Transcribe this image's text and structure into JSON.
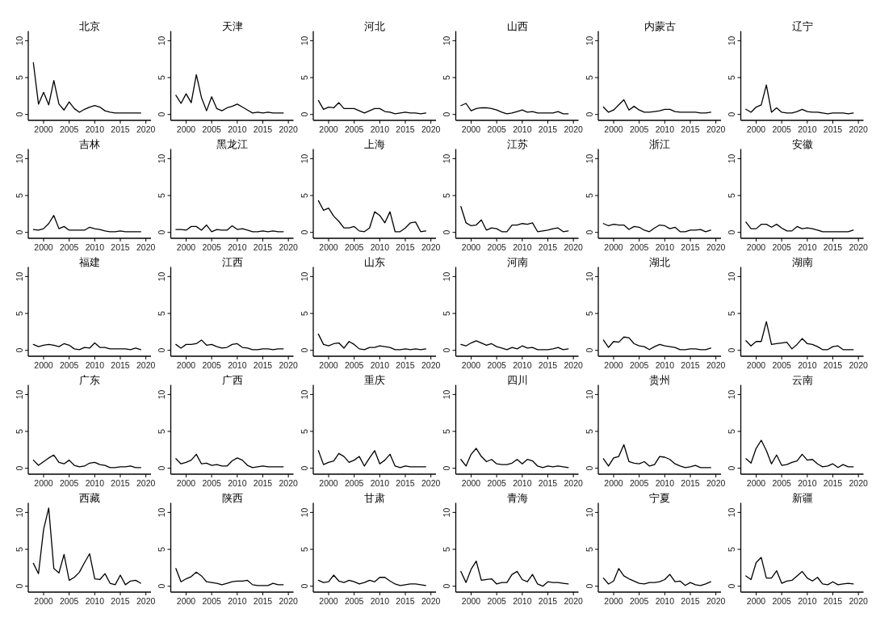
{
  "chart_data": [
    {
      "type": "line",
      "title": "北京",
      "x": [
        1998,
        1999,
        2000,
        2001,
        2002,
        2003,
        2004,
        2005,
        2006,
        2007,
        2008,
        2009,
        2010,
        2011,
        2012,
        2013,
        2014,
        2015,
        2016,
        2017,
        2018,
        2019
      ],
      "values": [
        7.0,
        1.4,
        3.0,
        1.3,
        4.6,
        1.4,
        0.6,
        1.7,
        0.8,
        0.3,
        0.7,
        1.0,
        1.2,
        1.0,
        0.5,
        0.3,
        0.2,
        0.2,
        0.2,
        0.2,
        0.2,
        0.2
      ],
      "color": "#000000",
      "xlim": [
        1997,
        2021
      ],
      "xticks": [
        2000,
        2005,
        2010,
        2015,
        2020
      ],
      "ylim": [
        -0.8,
        11.3
      ],
      "yticks": [
        0,
        5,
        10
      ]
    },
    {
      "type": "line",
      "title": "天津",
      "x": [
        1998,
        1999,
        2000,
        2001,
        2002,
        2003,
        2004,
        2005,
        2006,
        2007,
        2008,
        2009,
        2010,
        2011,
        2012,
        2013,
        2014,
        2015,
        2016,
        2017,
        2018,
        2019
      ],
      "values": [
        2.6,
        1.5,
        2.8,
        1.6,
        5.4,
        2.3,
        0.5,
        2.4,
        0.8,
        0.5,
        0.9,
        1.1,
        1.4,
        1.0,
        0.6,
        0.2,
        0.3,
        0.2,
        0.3,
        0.2,
        0.2,
        0.2
      ],
      "color": "#000000",
      "xlim": [
        1997,
        2021
      ],
      "xticks": [
        2000,
        2005,
        2010,
        2015,
        2020
      ],
      "ylim": [
        -0.8,
        11.3
      ],
      "yticks": [
        0,
        5,
        10
      ]
    },
    {
      "type": "line",
      "title": "河北",
      "x": [
        1998,
        1999,
        2000,
        2001,
        2002,
        2003,
        2004,
        2005,
        2006,
        2007,
        2008,
        2009,
        2010,
        2011,
        2012,
        2013,
        2014,
        2015,
        2016,
        2017,
        2018,
        2019
      ],
      "values": [
        1.9,
        0.7,
        1.0,
        0.9,
        1.6,
        0.8,
        0.8,
        0.8,
        0.5,
        0.2,
        0.5,
        0.8,
        0.8,
        0.4,
        0.3,
        0.1,
        0.2,
        0.3,
        0.2,
        0.2,
        0.1,
        0.2
      ],
      "color": "#000000",
      "xlim": [
        1997,
        2021
      ],
      "xticks": [
        2000,
        2005,
        2010,
        2015,
        2020
      ],
      "ylim": [
        -0.8,
        11.3
      ],
      "yticks": [
        0,
        5,
        10
      ]
    },
    {
      "type": "line",
      "title": "山西",
      "x": [
        1998,
        1999,
        2000,
        2001,
        2002,
        2003,
        2004,
        2005,
        2006,
        2007,
        2008,
        2009,
        2010,
        2011,
        2012,
        2013,
        2014,
        2015,
        2016,
        2017,
        2018,
        2019
      ],
      "values": [
        1.2,
        1.5,
        0.5,
        0.8,
        0.9,
        0.9,
        0.8,
        0.6,
        0.3,
        0.1,
        0.2,
        0.4,
        0.6,
        0.3,
        0.4,
        0.2,
        0.2,
        0.2,
        0.2,
        0.4,
        0.1,
        0.1
      ],
      "color": "#000000",
      "xlim": [
        1997,
        2021
      ],
      "xticks": [
        2000,
        2005,
        2010,
        2015,
        2020
      ],
      "ylim": [
        -0.8,
        11.3
      ],
      "yticks": [
        0,
        5,
        10
      ]
    },
    {
      "type": "line",
      "title": "内蒙古",
      "x": [
        1998,
        1999,
        2000,
        2001,
        2002,
        2003,
        2004,
        2005,
        2006,
        2007,
        2008,
        2009,
        2010,
        2011,
        2012,
        2013,
        2014,
        2015,
        2016,
        2017,
        2018,
        2019
      ],
      "values": [
        1.0,
        0.3,
        0.6,
        1.3,
        2.0,
        0.6,
        1.1,
        0.6,
        0.3,
        0.3,
        0.4,
        0.5,
        0.7,
        0.7,
        0.4,
        0.3,
        0.3,
        0.3,
        0.3,
        0.2,
        0.2,
        0.3
      ],
      "color": "#000000",
      "xlim": [
        1997,
        2021
      ],
      "xticks": [
        2000,
        2005,
        2010,
        2015,
        2020
      ],
      "ylim": [
        -0.8,
        11.3
      ],
      "yticks": [
        0,
        5,
        10
      ]
    },
    {
      "type": "line",
      "title": "辽宁",
      "x": [
        1998,
        1999,
        2000,
        2001,
        2002,
        2003,
        2004,
        2005,
        2006,
        2007,
        2008,
        2009,
        2010,
        2011,
        2012,
        2013,
        2014,
        2015,
        2016,
        2017,
        2018,
        2019
      ],
      "values": [
        0.7,
        0.3,
        1.0,
        1.3,
        4.0,
        0.3,
        0.9,
        0.3,
        0.2,
        0.2,
        0.4,
        0.7,
        0.4,
        0.3,
        0.3,
        0.2,
        0.1,
        0.2,
        0.2,
        0.2,
        0.1,
        0.2
      ],
      "color": "#000000",
      "xlim": [
        1997,
        2021
      ],
      "xticks": [
        2000,
        2005,
        2010,
        2015,
        2020
      ],
      "ylim": [
        -0.8,
        11.3
      ],
      "yticks": [
        0,
        5,
        10
      ]
    },
    {
      "type": "line",
      "title": "吉林",
      "x": [
        1998,
        1999,
        2000,
        2001,
        2002,
        2003,
        2004,
        2005,
        2006,
        2007,
        2008,
        2009,
        2010,
        2011,
        2012,
        2013,
        2014,
        2015,
        2016,
        2017,
        2018,
        2019
      ],
      "values": [
        0.4,
        0.3,
        0.5,
        1.2,
        2.3,
        0.5,
        0.8,
        0.3,
        0.3,
        0.3,
        0.3,
        0.7,
        0.5,
        0.4,
        0.2,
        0.1,
        0.1,
        0.2,
        0.1,
        0.1,
        0.1,
        0.1
      ],
      "color": "#000000",
      "xlim": [
        1997,
        2021
      ],
      "xticks": [
        2000,
        2005,
        2010,
        2015,
        2020
      ],
      "ylim": [
        -0.8,
        11.3
      ],
      "yticks": [
        0,
        5,
        10
      ]
    },
    {
      "type": "line",
      "title": "黑龙江",
      "x": [
        1998,
        1999,
        2000,
        2001,
        2002,
        2003,
        2004,
        2005,
        2006,
        2007,
        2008,
        2009,
        2010,
        2011,
        2012,
        2013,
        2014,
        2015,
        2016,
        2017,
        2018,
        2019
      ],
      "values": [
        0.4,
        0.4,
        0.3,
        0.8,
        0.8,
        0.3,
        1.0,
        0.1,
        0.4,
        0.3,
        0.3,
        0.9,
        0.4,
        0.5,
        0.3,
        0.1,
        0.1,
        0.2,
        0.1,
        0.2,
        0.1,
        0.1
      ],
      "color": "#000000",
      "xlim": [
        1997,
        2021
      ],
      "xticks": [
        2000,
        2005,
        2010,
        2015,
        2020
      ],
      "ylim": [
        -0.8,
        11.3
      ],
      "yticks": [
        0,
        5,
        10
      ]
    },
    {
      "type": "line",
      "title": "上海",
      "x": [
        1998,
        1999,
        2000,
        2001,
        2002,
        2003,
        2004,
        2005,
        2006,
        2007,
        2008,
        2009,
        2010,
        2011,
        2012,
        2013,
        2014,
        2015,
        2016,
        2017,
        2018,
        2019
      ],
      "values": [
        4.3,
        3.0,
        3.3,
        2.2,
        1.5,
        0.6,
        0.6,
        0.8,
        0.2,
        0.1,
        0.6,
        2.8,
        2.3,
        1.3,
        2.8,
        0.1,
        0.1,
        0.6,
        1.3,
        1.4,
        0.1,
        0.2
      ],
      "color": "#000000",
      "xlim": [
        1997,
        2021
      ],
      "xticks": [
        2000,
        2005,
        2010,
        2015,
        2020
      ],
      "ylim": [
        -0.8,
        11.3
      ],
      "yticks": [
        0,
        5,
        10
      ]
    },
    {
      "type": "line",
      "title": "江苏",
      "x": [
        1998,
        1999,
        2000,
        2001,
        2002,
        2003,
        2004,
        2005,
        2006,
        2007,
        2008,
        2009,
        2010,
        2011,
        2012,
        2013,
        2014,
        2015,
        2016,
        2017,
        2018,
        2019
      ],
      "values": [
        3.5,
        1.3,
        0.9,
        1.0,
        1.7,
        0.3,
        0.6,
        0.5,
        0.1,
        0.1,
        1.0,
        1.0,
        1.2,
        1.1,
        1.3,
        0.1,
        0.2,
        0.3,
        0.5,
        0.6,
        0.1,
        0.2
      ],
      "color": "#000000",
      "xlim": [
        1997,
        2021
      ],
      "xticks": [
        2000,
        2005,
        2010,
        2015,
        2020
      ],
      "ylim": [
        -0.8,
        11.3
      ],
      "yticks": [
        0,
        5,
        10
      ]
    },
    {
      "type": "line",
      "title": "浙江",
      "x": [
        1998,
        1999,
        2000,
        2001,
        2002,
        2003,
        2004,
        2005,
        2006,
        2007,
        2008,
        2009,
        2010,
        2011,
        2012,
        2013,
        2014,
        2015,
        2016,
        2017,
        2018,
        2019
      ],
      "values": [
        1.2,
        0.9,
        1.1,
        1.0,
        1.0,
        0.4,
        0.8,
        0.7,
        0.3,
        0.1,
        0.6,
        1.0,
        0.9,
        0.5,
        0.7,
        0.1,
        0.1,
        0.3,
        0.3,
        0.4,
        0.1,
        0.3
      ],
      "color": "#000000",
      "xlim": [
        1997,
        2021
      ],
      "xticks": [
        2000,
        2005,
        2010,
        2015,
        2020
      ],
      "ylim": [
        -0.8,
        11.3
      ],
      "yticks": [
        0,
        5,
        10
      ]
    },
    {
      "type": "line",
      "title": "安徽",
      "x": [
        1998,
        1999,
        2000,
        2001,
        2002,
        2003,
        2004,
        2005,
        2006,
        2007,
        2008,
        2009,
        2010,
        2011,
        2012,
        2013,
        2014,
        2015,
        2016,
        2017,
        2018,
        2019
      ],
      "values": [
        1.4,
        0.5,
        0.5,
        1.1,
        1.1,
        0.7,
        1.1,
        0.6,
        0.2,
        0.2,
        0.8,
        0.5,
        0.6,
        0.5,
        0.3,
        0.1,
        0.1,
        0.1,
        0.1,
        0.1,
        0.1,
        0.3
      ],
      "color": "#000000",
      "xlim": [
        1997,
        2021
      ],
      "xticks": [
        2000,
        2005,
        2010,
        2015,
        2020
      ],
      "ylim": [
        -0.8,
        11.3
      ],
      "yticks": [
        0,
        5,
        10
      ]
    },
    {
      "type": "line",
      "title": "福建",
      "x": [
        1998,
        1999,
        2000,
        2001,
        2002,
        2003,
        2004,
        2005,
        2006,
        2007,
        2008,
        2009,
        2010,
        2011,
        2012,
        2013,
        2014,
        2015,
        2016,
        2017,
        2018,
        2019
      ],
      "values": [
        0.8,
        0.5,
        0.7,
        0.8,
        0.7,
        0.5,
        0.9,
        0.7,
        0.2,
        0.1,
        0.4,
        0.3,
        1.0,
        0.4,
        0.4,
        0.2,
        0.2,
        0.2,
        0.2,
        0.1,
        0.3,
        0.1
      ],
      "color": "#000000",
      "xlim": [
        1997,
        2021
      ],
      "xticks": [
        2000,
        2005,
        2010,
        2015,
        2020
      ],
      "ylim": [
        -0.8,
        11.3
      ],
      "yticks": [
        0,
        5,
        10
      ]
    },
    {
      "type": "line",
      "title": "江西",
      "x": [
        1998,
        1999,
        2000,
        2001,
        2002,
        2003,
        2004,
        2005,
        2006,
        2007,
        2008,
        2009,
        2010,
        2011,
        2012,
        2013,
        2014,
        2015,
        2016,
        2017,
        2018,
        2019
      ],
      "values": [
        0.8,
        0.3,
        0.8,
        0.8,
        0.9,
        1.4,
        0.7,
        0.8,
        0.5,
        0.3,
        0.4,
        0.8,
        0.9,
        0.4,
        0.3,
        0.1,
        0.1,
        0.2,
        0.2,
        0.1,
        0.2,
        0.2
      ],
      "color": "#000000",
      "xlim": [
        1997,
        2021
      ],
      "xticks": [
        2000,
        2005,
        2010,
        2015,
        2020
      ],
      "ylim": [
        -0.8,
        11.3
      ],
      "yticks": [
        0,
        5,
        10
      ]
    },
    {
      "type": "line",
      "title": "山东",
      "x": [
        1998,
        1999,
        2000,
        2001,
        2002,
        2003,
        2004,
        2005,
        2006,
        2007,
        2008,
        2009,
        2010,
        2011,
        2012,
        2013,
        2014,
        2015,
        2016,
        2017,
        2018,
        2019
      ],
      "values": [
        2.2,
        0.8,
        0.6,
        0.9,
        1.0,
        0.3,
        1.2,
        0.8,
        0.2,
        0.1,
        0.4,
        0.4,
        0.6,
        0.5,
        0.4,
        0.1,
        0.1,
        0.2,
        0.1,
        0.2,
        0.1,
        0.2
      ],
      "color": "#000000",
      "xlim": [
        1997,
        2021
      ],
      "xticks": [
        2000,
        2005,
        2010,
        2015,
        2020
      ],
      "ylim": [
        -0.8,
        11.3
      ],
      "yticks": [
        0,
        5,
        10
      ]
    },
    {
      "type": "line",
      "title": "河南",
      "x": [
        1998,
        1999,
        2000,
        2001,
        2002,
        2003,
        2004,
        2005,
        2006,
        2007,
        2008,
        2009,
        2010,
        2011,
        2012,
        2013,
        2014,
        2015,
        2016,
        2017,
        2018,
        2019
      ],
      "values": [
        0.8,
        0.6,
        1.0,
        1.3,
        1.0,
        0.7,
        0.9,
        0.5,
        0.3,
        0.1,
        0.4,
        0.2,
        0.6,
        0.3,
        0.4,
        0.1,
        0.1,
        0.1,
        0.2,
        0.4,
        0.1,
        0.2
      ],
      "color": "#000000",
      "xlim": [
        1997,
        2021
      ],
      "xticks": [
        2000,
        2005,
        2010,
        2015,
        2020
      ],
      "ylim": [
        -0.8,
        11.3
      ],
      "yticks": [
        0,
        5,
        10
      ]
    },
    {
      "type": "line",
      "title": "湖北",
      "x": [
        1998,
        1999,
        2000,
        2001,
        2002,
        2003,
        2004,
        2005,
        2006,
        2007,
        2008,
        2009,
        2010,
        2011,
        2012,
        2013,
        2014,
        2015,
        2016,
        2017,
        2018,
        2019
      ],
      "values": [
        1.4,
        0.4,
        1.2,
        1.1,
        1.8,
        1.7,
        0.9,
        0.6,
        0.5,
        0.1,
        0.5,
        0.8,
        0.6,
        0.5,
        0.4,
        0.1,
        0.1,
        0.2,
        0.2,
        0.1,
        0.1,
        0.3
      ],
      "color": "#000000",
      "xlim": [
        1997,
        2021
      ],
      "xticks": [
        2000,
        2005,
        2010,
        2015,
        2020
      ],
      "ylim": [
        -0.8,
        11.3
      ],
      "yticks": [
        0,
        5,
        10
      ]
    },
    {
      "type": "line",
      "title": "湖南",
      "x": [
        1998,
        1999,
        2000,
        2001,
        2002,
        2003,
        2004,
        2005,
        2006,
        2007,
        2008,
        2009,
        2010,
        2011,
        2012,
        2013,
        2014,
        2015,
        2016,
        2017,
        2018,
        2019
      ],
      "values": [
        1.3,
        0.6,
        1.2,
        1.2,
        3.9,
        0.8,
        0.9,
        1.0,
        1.1,
        0.2,
        0.8,
        1.6,
        0.9,
        0.8,
        0.5,
        0.1,
        0.1,
        0.5,
        0.6,
        0.1,
        0.1,
        0.1
      ],
      "color": "#000000",
      "xlim": [
        1997,
        2021
      ],
      "xticks": [
        2000,
        2005,
        2010,
        2015,
        2020
      ],
      "ylim": [
        -0.8,
        11.3
      ],
      "yticks": [
        0,
        5,
        10
      ]
    },
    {
      "type": "line",
      "title": "广东",
      "x": [
        1998,
        1999,
        2000,
        2001,
        2002,
        2003,
        2004,
        2005,
        2006,
        2007,
        2008,
        2009,
        2010,
        2011,
        2012,
        2013,
        2014,
        2015,
        2016,
        2017,
        2018,
        2019
      ],
      "values": [
        1.1,
        0.4,
        0.9,
        1.4,
        1.8,
        0.8,
        0.6,
        1.1,
        0.4,
        0.2,
        0.3,
        0.7,
        0.8,
        0.5,
        0.4,
        0.1,
        0.1,
        0.2,
        0.2,
        0.3,
        0.1,
        0.1
      ],
      "color": "#000000",
      "xlim": [
        1997,
        2021
      ],
      "xticks": [
        2000,
        2005,
        2010,
        2015,
        2020
      ],
      "ylim": [
        -0.8,
        11.3
      ],
      "yticks": [
        0,
        5,
        10
      ]
    },
    {
      "type": "line",
      "title": "广西",
      "x": [
        1998,
        1999,
        2000,
        2001,
        2002,
        2003,
        2004,
        2005,
        2006,
        2007,
        2008,
        2009,
        2010,
        2011,
        2012,
        2013,
        2014,
        2015,
        2016,
        2017,
        2018,
        2019
      ],
      "values": [
        1.3,
        0.6,
        0.8,
        1.1,
        1.9,
        0.6,
        0.7,
        0.4,
        0.5,
        0.3,
        0.3,
        1.0,
        1.4,
        1.1,
        0.4,
        0.1,
        0.2,
        0.3,
        0.2,
        0.2,
        0.2,
        0.2
      ],
      "color": "#000000",
      "xlim": [
        1997,
        2021
      ],
      "xticks": [
        2000,
        2005,
        2010,
        2015,
        2020
      ],
      "ylim": [
        -0.8,
        11.3
      ],
      "yticks": [
        0,
        5,
        10
      ]
    },
    {
      "type": "line",
      "title": "重庆",
      "x": [
        1998,
        1999,
        2000,
        2001,
        2002,
        2003,
        2004,
        2005,
        2006,
        2007,
        2008,
        2009,
        2010,
        2011,
        2012,
        2013,
        2014,
        2015,
        2016,
        2017,
        2018,
        2019
      ],
      "values": [
        2.4,
        0.5,
        0.8,
        1.0,
        2.0,
        1.6,
        0.8,
        1.1,
        1.6,
        0.3,
        1.4,
        2.4,
        0.6,
        1.1,
        1.9,
        0.3,
        0.1,
        0.3,
        0.2,
        0.2,
        0.2,
        0.2
      ],
      "color": "#000000",
      "xlim": [
        1997,
        2021
      ],
      "xticks": [
        2000,
        2005,
        2010,
        2015,
        2020
      ],
      "ylim": [
        -0.8,
        11.3
      ],
      "yticks": [
        0,
        5,
        10
      ]
    },
    {
      "type": "line",
      "title": "四川",
      "x": [
        1998,
        1999,
        2000,
        2001,
        2002,
        2003,
        2004,
        2005,
        2006,
        2007,
        2008,
        2009,
        2010,
        2011,
        2012,
        2013,
        2014,
        2015,
        2016,
        2017,
        2018,
        2019
      ],
      "values": [
        1.2,
        0.3,
        1.9,
        2.7,
        1.6,
        0.9,
        1.2,
        0.6,
        0.5,
        0.5,
        0.7,
        1.2,
        0.6,
        1.2,
        1.0,
        0.3,
        0.1,
        0.3,
        0.2,
        0.3,
        0.2,
        0.1
      ],
      "color": "#000000",
      "xlim": [
        1997,
        2021
      ],
      "xticks": [
        2000,
        2005,
        2010,
        2015,
        2020
      ],
      "ylim": [
        -0.8,
        11.3
      ],
      "yticks": [
        0,
        5,
        10
      ]
    },
    {
      "type": "line",
      "title": "贵州",
      "x": [
        1998,
        1999,
        2000,
        2001,
        2002,
        2003,
        2004,
        2005,
        2006,
        2007,
        2008,
        2009,
        2010,
        2011,
        2012,
        2013,
        2014,
        2015,
        2016,
        2017,
        2018,
        2019
      ],
      "values": [
        1.3,
        0.3,
        1.4,
        1.6,
        3.2,
        0.9,
        0.7,
        0.6,
        0.9,
        0.3,
        0.5,
        1.6,
        1.5,
        1.2,
        0.6,
        0.3,
        0.1,
        0.2,
        0.4,
        0.1,
        0.1,
        0.1
      ],
      "color": "#000000",
      "xlim": [
        1997,
        2021
      ],
      "xticks": [
        2000,
        2005,
        2010,
        2015,
        2020
      ],
      "ylim": [
        -0.8,
        11.3
      ],
      "yticks": [
        0,
        5,
        10
      ]
    },
    {
      "type": "line",
      "title": "云南",
      "x": [
        1998,
        1999,
        2000,
        2001,
        2002,
        2003,
        2004,
        2005,
        2006,
        2007,
        2008,
        2009,
        2010,
        2011,
        2012,
        2013,
        2014,
        2015,
        2016,
        2017,
        2018,
        2019
      ],
      "values": [
        1.3,
        0.7,
        2.7,
        3.8,
        2.4,
        0.6,
        1.8,
        0.4,
        0.5,
        0.8,
        1.0,
        1.9,
        1.1,
        1.2,
        0.6,
        0.2,
        0.3,
        0.6,
        0.1,
        0.5,
        0.2,
        0.2
      ],
      "color": "#000000",
      "xlim": [
        1997,
        2021
      ],
      "xticks": [
        2000,
        2005,
        2010,
        2015,
        2020
      ],
      "ylim": [
        -0.8,
        11.3
      ],
      "yticks": [
        0,
        5,
        10
      ]
    },
    {
      "type": "line",
      "title": "西藏",
      "x": [
        1998,
        1999,
        2000,
        2001,
        2002,
        2003,
        2004,
        2005,
        2006,
        2007,
        2008,
        2009,
        2010,
        2011,
        2012,
        2013,
        2014,
        2015,
        2016,
        2017,
        2018,
        2019
      ],
      "values": [
        3.1,
        1.7,
        7.7,
        10.6,
        2.4,
        1.8,
        4.3,
        0.8,
        1.2,
        1.9,
        3.2,
        4.4,
        1.0,
        0.9,
        1.7,
        0.4,
        0.2,
        1.5,
        0.2,
        0.7,
        0.8,
        0.4
      ],
      "color": "#000000",
      "xlim": [
        1997,
        2021
      ],
      "xticks": [
        2000,
        2005,
        2010,
        2015,
        2020
      ],
      "ylim": [
        -0.8,
        11.3
      ],
      "yticks": [
        0,
        5,
        10
      ]
    },
    {
      "type": "line",
      "title": "陕西",
      "x": [
        1998,
        1999,
        2000,
        2001,
        2002,
        2003,
        2004,
        2005,
        2006,
        2007,
        2008,
        2009,
        2010,
        2011,
        2012,
        2013,
        2014,
        2015,
        2016,
        2017,
        2018,
        2019
      ],
      "values": [
        2.4,
        0.6,
        1.0,
        1.3,
        1.9,
        1.4,
        0.6,
        0.5,
        0.4,
        0.2,
        0.4,
        0.6,
        0.7,
        0.7,
        0.8,
        0.2,
        0.1,
        0.1,
        0.1,
        0.4,
        0.2,
        0.2
      ],
      "color": "#000000",
      "xlim": [
        1997,
        2021
      ],
      "xticks": [
        2000,
        2005,
        2010,
        2015,
        2020
      ],
      "ylim": [
        -0.8,
        11.3
      ],
      "yticks": [
        0,
        5,
        10
      ]
    },
    {
      "type": "line",
      "title": "甘肃",
      "x": [
        1998,
        1999,
        2000,
        2001,
        2002,
        2003,
        2004,
        2005,
        2006,
        2007,
        2008,
        2009,
        2010,
        2011,
        2012,
        2013,
        2014,
        2015,
        2016,
        2017,
        2018,
        2019
      ],
      "values": [
        0.8,
        0.5,
        0.6,
        1.5,
        0.7,
        0.5,
        0.8,
        0.6,
        0.3,
        0.5,
        0.8,
        0.6,
        1.2,
        1.2,
        0.7,
        0.3,
        0.1,
        0.2,
        0.3,
        0.3,
        0.2,
        0.1
      ],
      "color": "#000000",
      "xlim": [
        1997,
        2021
      ],
      "xticks": [
        2000,
        2005,
        2010,
        2015,
        2020
      ],
      "ylim": [
        -0.8,
        11.3
      ],
      "yticks": [
        0,
        5,
        10
      ]
    },
    {
      "type": "line",
      "title": "青海",
      "x": [
        1998,
        1999,
        2000,
        2001,
        2002,
        2003,
        2004,
        2005,
        2006,
        2007,
        2008,
        2009,
        2010,
        2011,
        2012,
        2013,
        2014,
        2015,
        2016,
        2017,
        2018,
        2019
      ],
      "values": [
        2.0,
        0.5,
        2.3,
        3.4,
        0.8,
        0.9,
        1.0,
        0.3,
        0.5,
        0.5,
        1.6,
        2.0,
        0.9,
        0.6,
        1.6,
        0.3,
        0.0,
        0.6,
        0.5,
        0.5,
        0.4,
        0.3
      ],
      "color": "#000000",
      "xlim": [
        1997,
        2021
      ],
      "xticks": [
        2000,
        2005,
        2010,
        2015,
        2020
      ],
      "ylim": [
        -0.8,
        11.3
      ],
      "yticks": [
        0,
        5,
        10
      ]
    },
    {
      "type": "line",
      "title": "宁夏",
      "x": [
        1998,
        1999,
        2000,
        2001,
        2002,
        2003,
        2004,
        2005,
        2006,
        2007,
        2008,
        2009,
        2010,
        2011,
        2012,
        2013,
        2014,
        2015,
        2016,
        2017,
        2018,
        2019
      ],
      "values": [
        1.1,
        0.3,
        0.7,
        2.4,
        1.4,
        1.0,
        0.7,
        0.4,
        0.3,
        0.5,
        0.5,
        0.6,
        0.9,
        1.6,
        0.6,
        0.7,
        0.1,
        0.5,
        0.2,
        0.1,
        0.3,
        0.6
      ],
      "color": "#000000",
      "xlim": [
        1997,
        2021
      ],
      "xticks": [
        2000,
        2005,
        2010,
        2015,
        2020
      ],
      "ylim": [
        -0.8,
        11.3
      ],
      "yticks": [
        0,
        5,
        10
      ]
    },
    {
      "type": "line",
      "title": "新疆",
      "x": [
        1998,
        1999,
        2000,
        2001,
        2002,
        2003,
        2004,
        2005,
        2006,
        2007,
        2008,
        2009,
        2010,
        2011,
        2012,
        2013,
        2014,
        2015,
        2016,
        2017,
        2018,
        2019
      ],
      "values": [
        1.4,
        0.9,
        3.2,
        3.9,
        1.1,
        1.1,
        2.1,
        0.4,
        0.7,
        0.8,
        1.4,
        2.0,
        1.1,
        0.7,
        1.2,
        0.3,
        0.2,
        0.6,
        0.2,
        0.3,
        0.4,
        0.3
      ],
      "color": "#000000",
      "xlim": [
        1997,
        2021
      ],
      "xticks": [
        2000,
        2005,
        2010,
        2015,
        2020
      ],
      "ylim": [
        -0.8,
        11.3
      ],
      "yticks": [
        0,
        5,
        10
      ]
    }
  ]
}
